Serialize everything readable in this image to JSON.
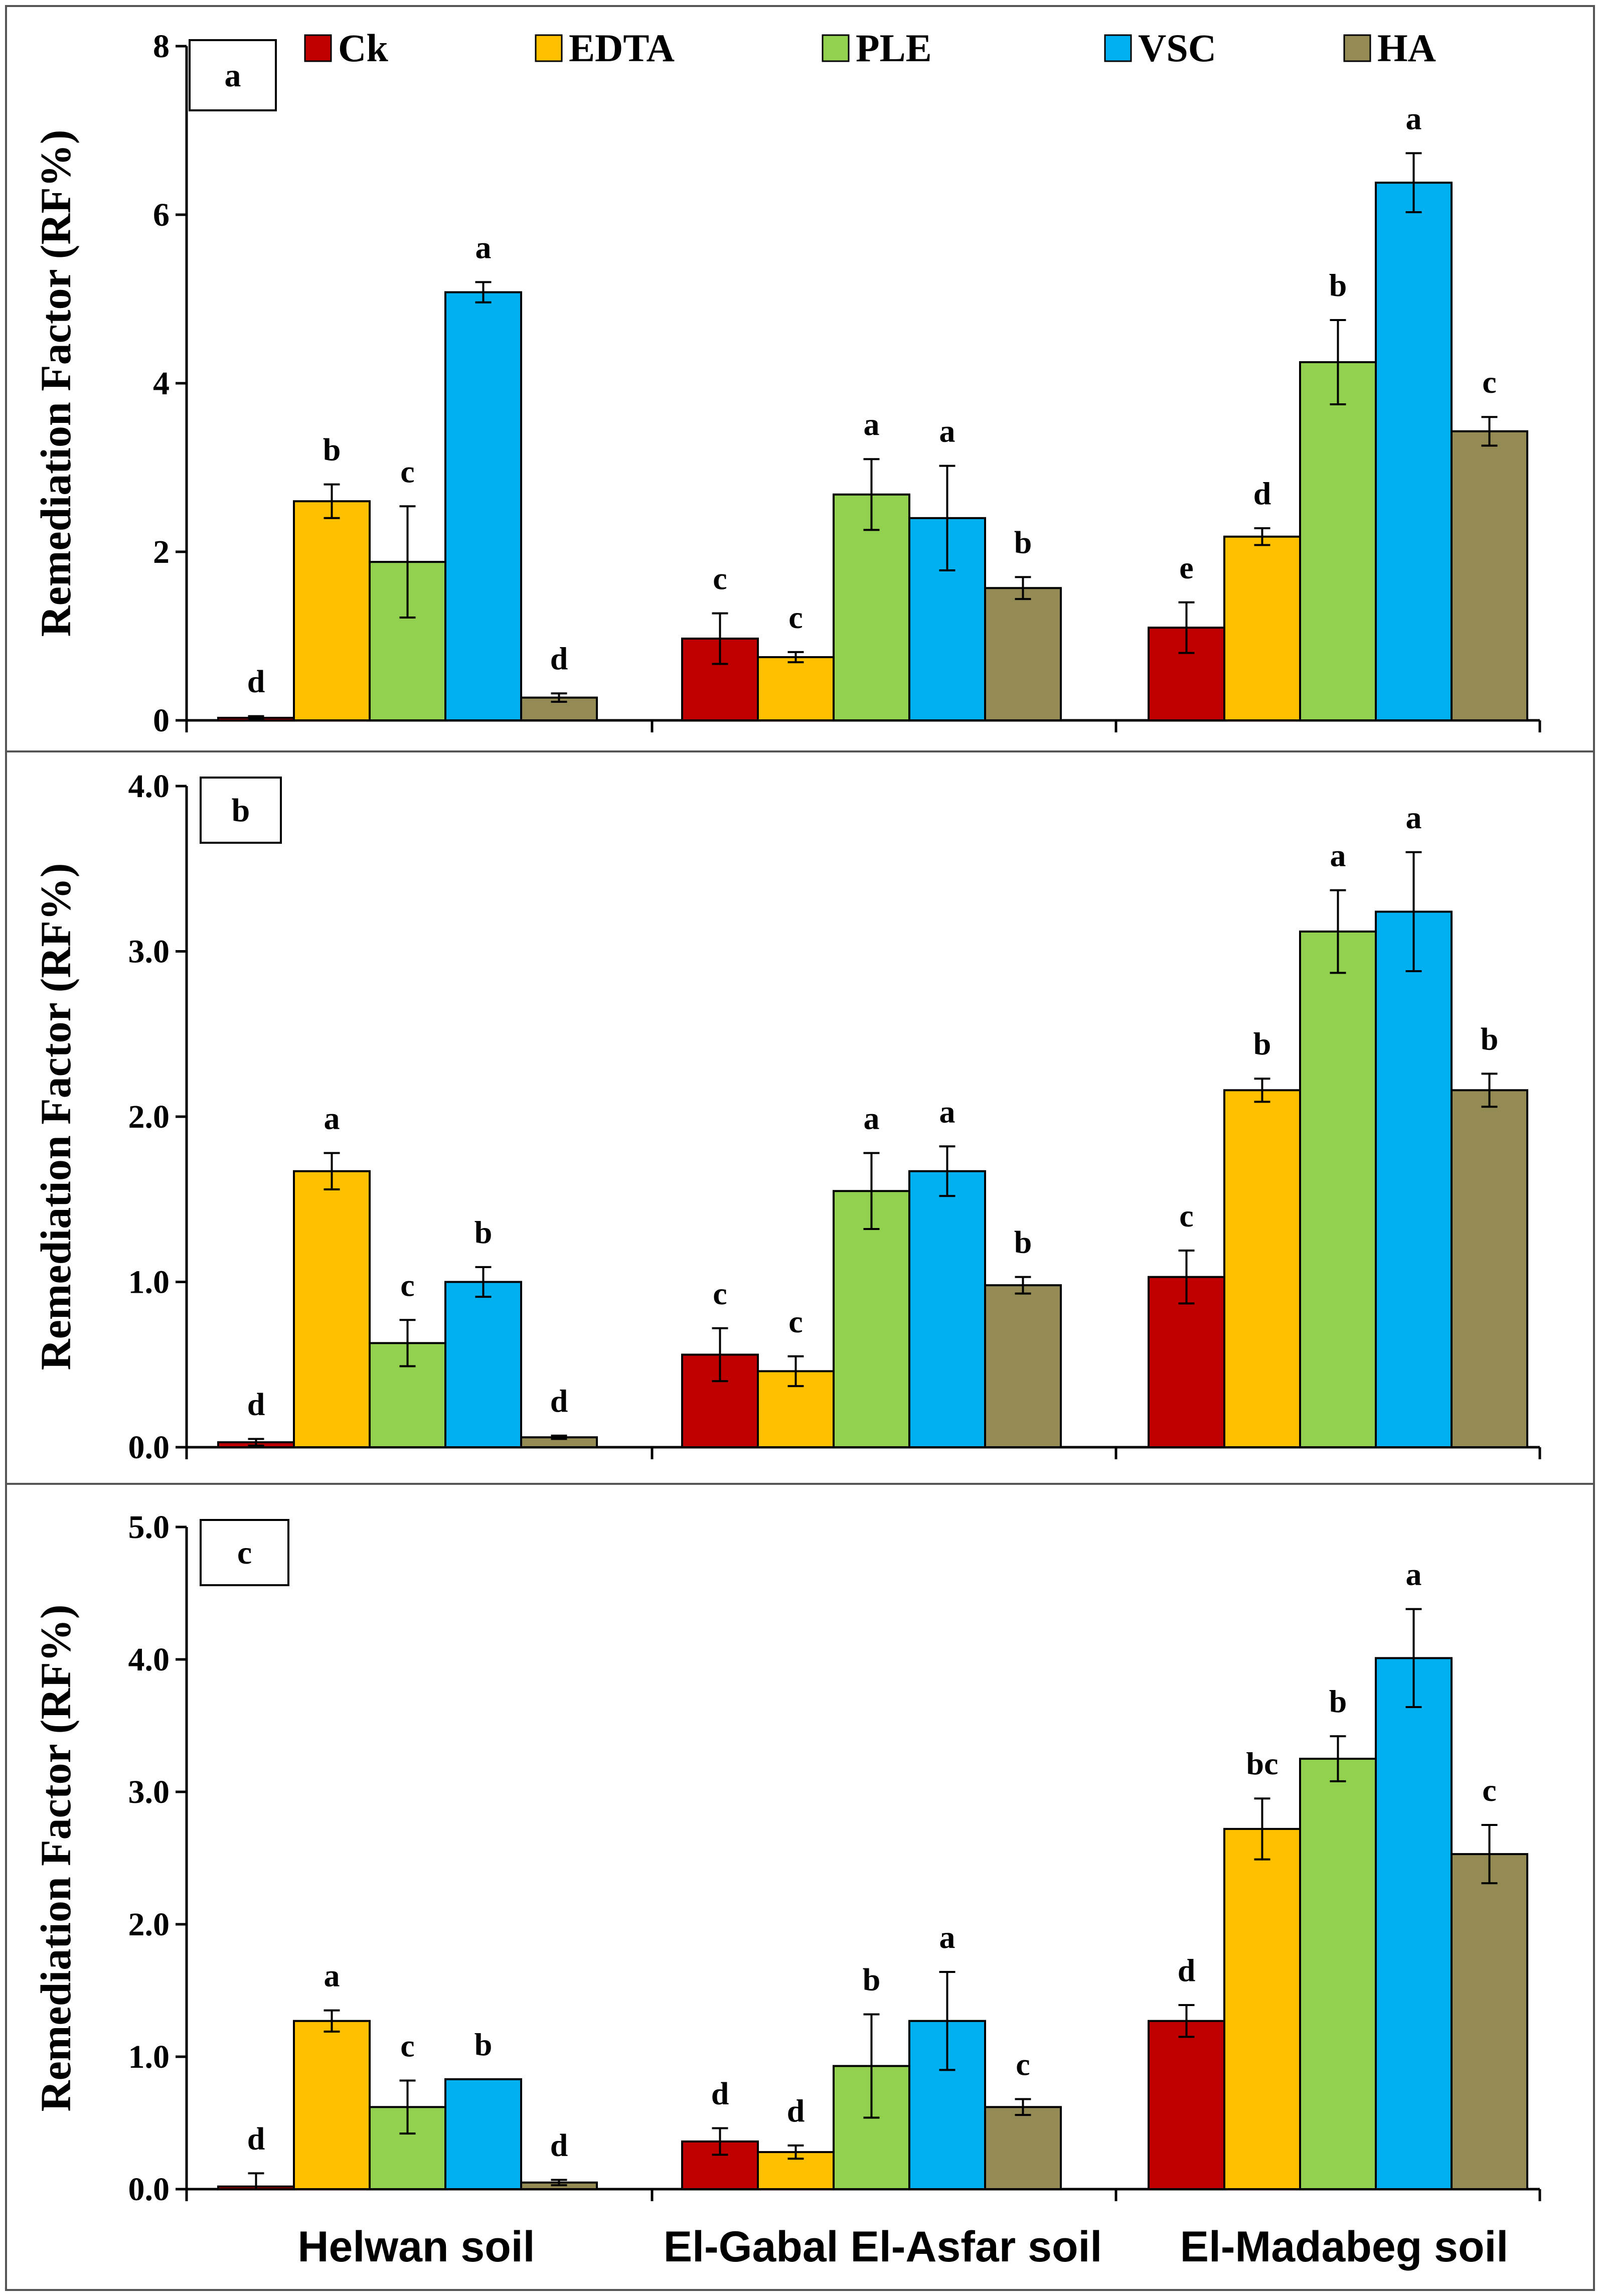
{
  "legend": [
    {
      "name": "Ck",
      "color": "#c00000"
    },
    {
      "name": "EDTA",
      "color": "#ffc000"
    },
    {
      "name": "PLE",
      "color": "#92d050"
    },
    {
      "name": "VSC",
      "color": "#00b0f0"
    },
    {
      "name": "HA",
      "color": "#948a54"
    }
  ],
  "chart_data": [
    {
      "type": "bar",
      "panel": "a",
      "ylabel": "Remediation Factor (RF%)",
      "ylim": [
        0,
        8
      ],
      "yticks": [
        "0",
        "2",
        "4",
        "6",
        "8"
      ],
      "categories": [
        "Helwan soil",
        "El-Gabal El-Asfar soil",
        "El-Madabeg soil"
      ],
      "series": [
        {
          "name": "Ck",
          "values": [
            0.03,
            0.97,
            1.1
          ],
          "errors": [
            0.02,
            0.3,
            0.3
          ],
          "letters": [
            "d",
            "c",
            "e"
          ]
        },
        {
          "name": "EDTA",
          "values": [
            2.6,
            0.75,
            2.18
          ],
          "errors": [
            0.2,
            0.06,
            0.1
          ],
          "letters": [
            "b",
            "c",
            "d"
          ]
        },
        {
          "name": "PLE",
          "values": [
            1.88,
            2.68,
            4.25
          ],
          "errors": [
            0.66,
            0.42,
            0.5
          ],
          "letters": [
            "c",
            "a",
            "b"
          ]
        },
        {
          "name": "VSC",
          "values": [
            5.08,
            2.4,
            6.38
          ],
          "errors": [
            0.12,
            0.62,
            0.35
          ],
          "letters": [
            "a",
            "a",
            "a"
          ]
        },
        {
          "name": "HA",
          "values": [
            0.27,
            1.57,
            3.43
          ],
          "errors": [
            0.05,
            0.13,
            0.17
          ],
          "letters": [
            "d",
            "b",
            "c"
          ]
        }
      ]
    },
    {
      "type": "bar",
      "panel": "b",
      "ylabel": "Remediation Factor (RF%)",
      "ylim": [
        0,
        4
      ],
      "yticks": [
        "0.0",
        "1.0",
        "2.0",
        "3.0",
        "4.0"
      ],
      "categories": [
        "Helwan soil",
        "El-Gabal El-Asfar soil",
        "El-Madabeg soil"
      ],
      "series": [
        {
          "name": "Ck",
          "values": [
            0.03,
            0.56,
            1.03
          ],
          "errors": [
            0.02,
            0.16,
            0.16
          ],
          "letters": [
            "d",
            "c",
            "c"
          ]
        },
        {
          "name": "EDTA",
          "values": [
            1.67,
            0.46,
            2.16
          ],
          "errors": [
            0.11,
            0.09,
            0.07
          ],
          "letters": [
            "a",
            "c",
            "b"
          ]
        },
        {
          "name": "PLE",
          "values": [
            0.63,
            1.55,
            3.12
          ],
          "errors": [
            0.14,
            0.23,
            0.25
          ],
          "letters": [
            "c",
            "a",
            "a"
          ]
        },
        {
          "name": "VSC",
          "values": [
            1.0,
            1.67,
            3.24
          ],
          "errors": [
            0.09,
            0.15,
            0.36
          ],
          "letters": [
            "b",
            "a",
            "a"
          ]
        },
        {
          "name": "HA",
          "values": [
            0.06,
            0.98,
            2.16
          ],
          "errors": [
            0.01,
            0.05,
            0.1
          ],
          "letters": [
            "d",
            "b",
            "b"
          ]
        }
      ]
    },
    {
      "type": "bar",
      "panel": "c",
      "ylabel": "Remediation Factor (RF%)",
      "ylim": [
        0,
        5
      ],
      "yticks": [
        "0.0",
        "1.0",
        "2.0",
        "3.0",
        "4.0",
        "5.0"
      ],
      "categories": [
        "Helwan soil",
        "El-Gabal El-Asfar  soil",
        "El-Madabeg soil"
      ],
      "series": [
        {
          "name": "Ck",
          "values": [
            0.02,
            0.36,
            1.27
          ],
          "errors": [
            0.1,
            0.1,
            0.12
          ],
          "letters": [
            "d",
            "d",
            "d"
          ]
        },
        {
          "name": "EDTA",
          "values": [
            1.27,
            0.28,
            2.72
          ],
          "errors": [
            0.08,
            0.05,
            0.23
          ],
          "letters": [
            "a",
            "d",
            "bc"
          ]
        },
        {
          "name": "PLE",
          "values": [
            0.62,
            0.93,
            3.25
          ],
          "errors": [
            0.2,
            0.39,
            0.17
          ],
          "letters": [
            "c",
            "b",
            "b"
          ]
        },
        {
          "name": "VSC",
          "values": [
            0.83,
            1.27,
            4.01
          ],
          "errors": [
            0.0,
            0.37,
            0.37
          ],
          "letters": [
            "b",
            "a",
            "a"
          ]
        },
        {
          "name": "HA",
          "values": [
            0.05,
            0.62,
            2.53
          ],
          "errors": [
            0.02,
            0.06,
            0.22
          ],
          "letters": [
            "d",
            "c",
            "c"
          ]
        }
      ]
    }
  ]
}
